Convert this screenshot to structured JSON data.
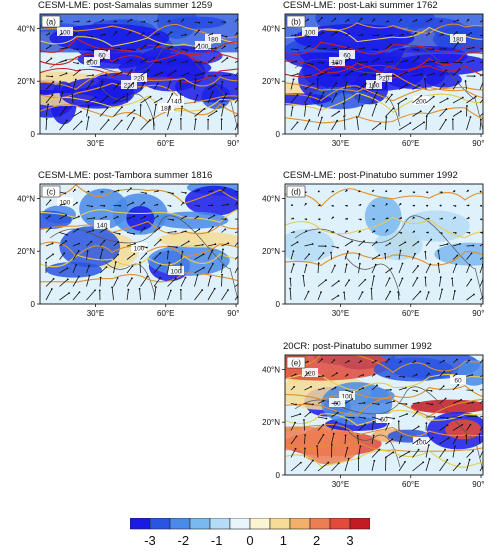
{
  "panels": [
    {
      "id": "a",
      "letter": "(a)",
      "title": "CESM-LME: post-Samalas summer 1259",
      "contours": [
        "100",
        "60",
        "220",
        "140",
        "180",
        "200",
        "220",
        "180",
        "100"
      ],
      "show_x_ticks": true
    },
    {
      "id": "b",
      "letter": "(b)",
      "title": "CESM-LME: post-Laki summer 1762",
      "contours": [
        "100",
        "60",
        "220",
        "200",
        "180",
        "180",
        "100"
      ],
      "show_x_ticks": true
    },
    {
      "id": "c",
      "letter": "(c)",
      "title": "CESM-LME: post-Tambora summer 1816",
      "contours": [
        "100",
        "140",
        "100",
        "100"
      ],
      "show_x_ticks": true
    },
    {
      "id": "d",
      "letter": "(d)",
      "title": "CESM-LME: post-Pinatubo summer 1992",
      "contours": [],
      "show_x_ticks": true
    },
    {
      "id": "e",
      "letter": "(e)",
      "title": "20CR: post-Pinatubo summer 1992",
      "contours": [
        "120",
        "100",
        "60",
        "100",
        "60",
        "60"
      ],
      "show_x_ticks": true
    }
  ],
  "axes": {
    "y_ticks": [
      "0",
      "20°N",
      "40°N"
    ],
    "x_ticks": [
      "30°E",
      "60°E",
      "90°E"
    ]
  },
  "colorbar": {
    "labels": [
      "-3",
      "-2",
      "-1",
      "0",
      "1",
      "2",
      "3"
    ],
    "colors": [
      "#1a1ae6",
      "#2a55e0",
      "#4a8ae8",
      "#7ab8f0",
      "#b4dcf6",
      "#e8f6fc",
      "#fbf4d0",
      "#f6dc96",
      "#f2b06a",
      "#ee7e52",
      "#e24a3a",
      "#c41a22"
    ]
  },
  "colors": {
    "contour_orange": "#e0902a",
    "contour_red": "#cc2020",
    "contour_yellow": "#e8cc50",
    "ocean_light": "#dff2fb"
  }
}
